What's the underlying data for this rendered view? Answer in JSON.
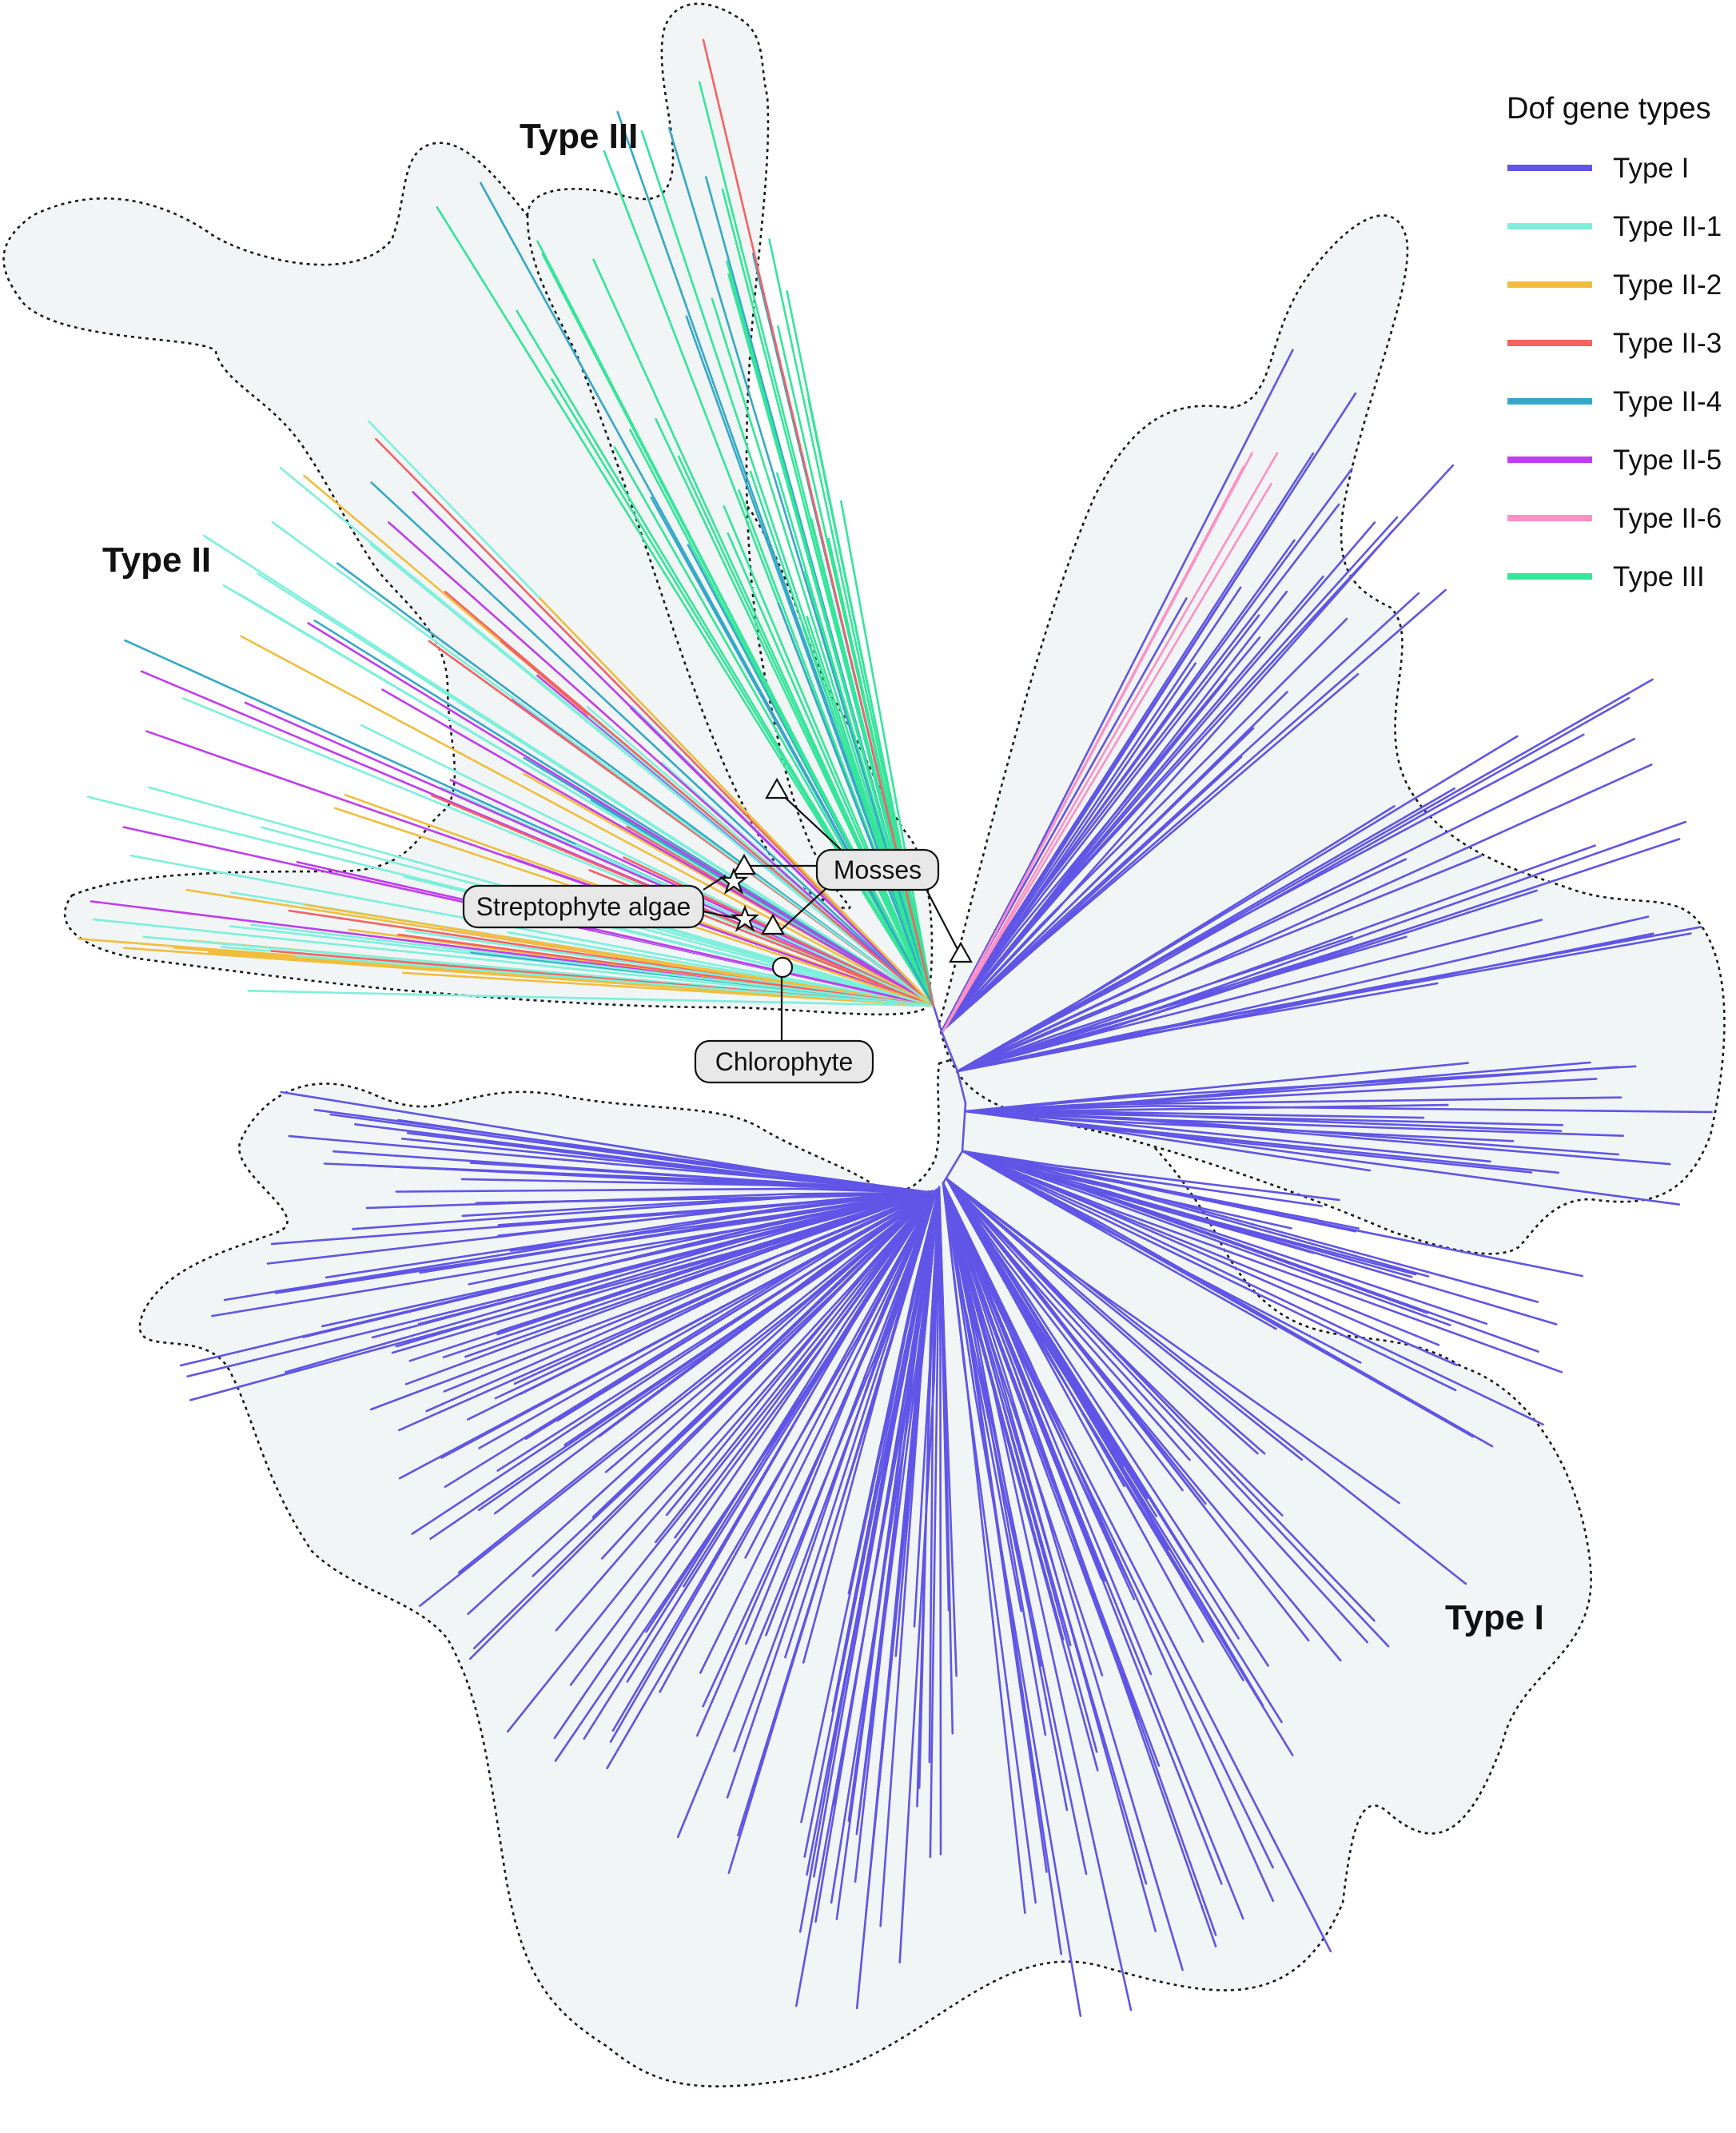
{
  "legend": {
    "title": "Dof gene types",
    "items": [
      {
        "label": "Type I",
        "color": "#6055e6"
      },
      {
        "label": "Type II-1",
        "color": "#7df0dc"
      },
      {
        "label": "Type II-2",
        "color": "#f2bd3d"
      },
      {
        "label": "Type II-3",
        "color": "#f56262"
      },
      {
        "label": "Type II-4",
        "color": "#35a8c8"
      },
      {
        "label": "Type II-5",
        "color": "#c03cf0"
      },
      {
        "label": "Type II-6",
        "color": "#ff8fc4"
      },
      {
        "label": "Type III",
        "color": "#34e59a"
      }
    ]
  },
  "groups": {
    "type_i": "Type I",
    "type_ii": "Type II",
    "type_iii": "Type III"
  },
  "callouts": {
    "mosses": "Mosses",
    "streptophyte": "Streptophyte algae",
    "chlorophyte": "Chlorophyte"
  },
  "marker_icons": {
    "mosses": "triangle-icon",
    "streptophyte": "star-icon",
    "chlorophyte": "circle-icon"
  }
}
